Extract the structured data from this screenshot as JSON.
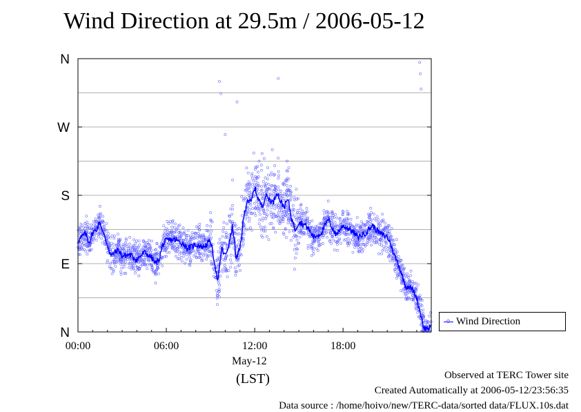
{
  "chart_data": {
    "type": "scatter",
    "title": "Wind Direction at 29.5m / 2006-05-12",
    "xlabel": "(LST)",
    "date_label": "May-12",
    "x_unit": "hour",
    "xlim": [
      0,
      23.99
    ],
    "ylim": [
      0,
      360
    ],
    "x_ticks": [
      {
        "value": 0,
        "label": "00:00"
      },
      {
        "value": 6,
        "label": "06:00"
      },
      {
        "value": 12,
        "label": "12:00"
      },
      {
        "value": 18,
        "label": "18:00"
      }
    ],
    "y_ticks": [
      {
        "value": 0,
        "label": "N"
      },
      {
        "value": 90,
        "label": "E"
      },
      {
        "value": 180,
        "label": "S"
      },
      {
        "value": 270,
        "label": "W"
      },
      {
        "value": 360,
        "label": "N"
      }
    ],
    "grid": "horizontal",
    "legend": "right-bottom, outside plot",
    "colors": {
      "line": "#0000ff",
      "points": "#6666ff"
    },
    "series": [
      {
        "name": "Wind Direction",
        "style": "line",
        "x": [
          0,
          0.25,
          0.5,
          0.75,
          1.0,
          1.25,
          1.5,
          1.75,
          2.0,
          2.25,
          2.5,
          2.75,
          3.0,
          3.5,
          4.0,
          4.5,
          5.0,
          5.25,
          5.5,
          5.75,
          6.0,
          6.5,
          7.0,
          7.5,
          8.0,
          8.5,
          9.0,
          9.25,
          9.5,
          9.75,
          10.0,
          10.25,
          10.5,
          10.75,
          11.0,
          11.25,
          11.5,
          11.75,
          12.0,
          12.25,
          12.5,
          12.75,
          13.0,
          13.25,
          13.5,
          13.75,
          14.0,
          14.25,
          14.5,
          14.75,
          15.0,
          15.5,
          16.0,
          16.5,
          17.0,
          17.5,
          18.0,
          18.5,
          19.0,
          19.5,
          20.0,
          20.5,
          21.0,
          21.25,
          21.5,
          21.75,
          22.0,
          22.25,
          22.5,
          22.75,
          23.0,
          23.25,
          23.5,
          23.75
        ],
        "y": [
          120,
          125,
          130,
          118,
          130,
          135,
          145,
          128,
          115,
          100,
          105,
          108,
          100,
          102,
          95,
          105,
          98,
          90,
          95,
          115,
          120,
          122,
          118,
          110,
          115,
          112,
          120,
          95,
          65,
          110,
          100,
          115,
          140,
          95,
          110,
          150,
          175,
          170,
          190,
          175,
          165,
          180,
          175,
          170,
          185,
          172,
          165,
          175,
          150,
          135,
          145,
          140,
          125,
          130,
          148,
          128,
          140,
          135,
          125,
          130,
          140,
          130,
          125,
          115,
          100,
          90,
          75,
          60,
          60,
          55,
          45,
          25,
          5,
          5
        ]
      },
      {
        "name": "",
        "style": "points",
        "x": [
          9.6,
          9.7,
          10.8,
          13.6,
          23.2,
          23.25,
          23.3,
          12.3,
          12.5,
          13.2,
          14.2,
          10.0,
          10.5
        ],
        "y": [
          330,
          314,
          303,
          334,
          355,
          340,
          320,
          225,
          235,
          240,
          225,
          260,
          200
        ]
      }
    ]
  },
  "footer": {
    "line1": "Observed at TERC Tower site",
    "line2": "Created Automatically at 2006-05-12/23:56:35",
    "line3": "Data source : /home/hoivo/new/TERC-data/sorted  data/FLUX.10s.dat"
  }
}
